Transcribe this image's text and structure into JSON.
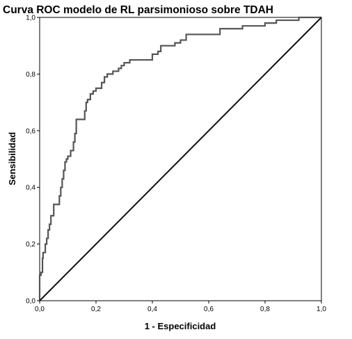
{
  "chart_data": {
    "type": "line",
    "title": "Curva ROC modelo de RL parsimonioso sobre TDAH",
    "xlabel": "1 - Especificidad",
    "ylabel": "Sensibilidad",
    "xlim": [
      0,
      1
    ],
    "ylim": [
      0,
      1
    ],
    "x_ticks": [
      "0,0",
      "0,2",
      "0,4",
      "0,6",
      "0,8",
      "1,0"
    ],
    "y_ticks": [
      "0,0",
      "0,2",
      "0,4",
      "0,6",
      "0,8",
      "1,0"
    ],
    "grid": false,
    "series": [
      {
        "color": "#555555",
        "points": [
          [
            0.0,
            0.0
          ],
          [
            0.0,
            0.06
          ],
          [
            0.005,
            0.09
          ],
          [
            0.01,
            0.1
          ],
          [
            0.012,
            0.15
          ],
          [
            0.02,
            0.17
          ],
          [
            0.025,
            0.2
          ],
          [
            0.03,
            0.22
          ],
          [
            0.035,
            0.25
          ],
          [
            0.04,
            0.27
          ],
          [
            0.05,
            0.3
          ],
          [
            0.055,
            0.34
          ],
          [
            0.07,
            0.34
          ],
          [
            0.075,
            0.37
          ],
          [
            0.08,
            0.4
          ],
          [
            0.085,
            0.43
          ],
          [
            0.09,
            0.46
          ],
          [
            0.095,
            0.49
          ],
          [
            0.1,
            0.5
          ],
          [
            0.11,
            0.51
          ],
          [
            0.12,
            0.53
          ],
          [
            0.125,
            0.56
          ],
          [
            0.13,
            0.59
          ],
          [
            0.14,
            0.64
          ],
          [
            0.16,
            0.64
          ],
          [
            0.165,
            0.67
          ],
          [
            0.17,
            0.7
          ],
          [
            0.18,
            0.71
          ],
          [
            0.19,
            0.73
          ],
          [
            0.2,
            0.74
          ],
          [
            0.22,
            0.75
          ],
          [
            0.23,
            0.77
          ],
          [
            0.24,
            0.79
          ],
          [
            0.26,
            0.8
          ],
          [
            0.28,
            0.81
          ],
          [
            0.29,
            0.82
          ],
          [
            0.3,
            0.83
          ],
          [
            0.32,
            0.84
          ],
          [
            0.34,
            0.85
          ],
          [
            0.4,
            0.85
          ],
          [
            0.42,
            0.87
          ],
          [
            0.43,
            0.88
          ],
          [
            0.45,
            0.9
          ],
          [
            0.48,
            0.9
          ],
          [
            0.5,
            0.91
          ],
          [
            0.52,
            0.92
          ],
          [
            0.56,
            0.94
          ],
          [
            0.64,
            0.94
          ],
          [
            0.66,
            0.96
          ],
          [
            0.72,
            0.96
          ],
          [
            0.73,
            0.97
          ],
          [
            0.8,
            0.97
          ],
          [
            0.84,
            0.98
          ],
          [
            0.88,
            0.99
          ],
          [
            0.92,
            0.99
          ],
          [
            0.95,
            1.0
          ],
          [
            1.0,
            1.0
          ]
        ]
      },
      {
        "color": "#111111",
        "points": [
          [
            0,
            0
          ],
          [
            1,
            1
          ]
        ]
      }
    ]
  }
}
